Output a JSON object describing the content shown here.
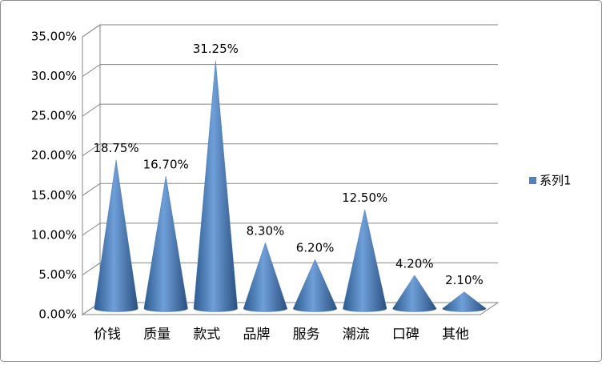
{
  "chart_data": {
    "type": "cone",
    "series": [
      {
        "name": "系列1",
        "color": "#4f81bd",
        "values": [
          18.75,
          16.7,
          31.25,
          8.3,
          6.2,
          12.5,
          4.2,
          2.1
        ],
        "value_labels": [
          "18.75%",
          "16.70%",
          "31.25%",
          "8.30%",
          "6.20%",
          "12.50%",
          "4.20%",
          "2.10%"
        ]
      }
    ],
    "categories": [
      "价钱",
      "质量",
      "款式",
      "品牌",
      "服务",
      "潮流",
      "口碑",
      "其他"
    ],
    "ylim": [
      0,
      35
    ],
    "yticks": [
      {
        "value": 0,
        "label": "0.00%"
      },
      {
        "value": 5,
        "label": "5.00%"
      },
      {
        "value": 10,
        "label": "10.00%"
      },
      {
        "value": 15,
        "label": "15.00%"
      },
      {
        "value": 20,
        "label": "20.00%"
      },
      {
        "value": 25,
        "label": "25.00%"
      },
      {
        "value": 30,
        "label": "30.00%"
      },
      {
        "value": 35,
        "label": "35.00%"
      }
    ],
    "grid": true,
    "legend": "right"
  }
}
